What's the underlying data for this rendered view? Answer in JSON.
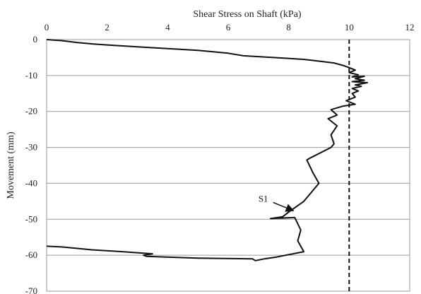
{
  "chart_data": {
    "type": "line",
    "title": "",
    "xlabel": "Shear Stress on Shaft (kPa)",
    "ylabel": "Movement (mm)",
    "xlim": [
      0,
      12
    ],
    "ylim": [
      -70,
      0
    ],
    "x_ticks": [
      0,
      2,
      4,
      6,
      8,
      10,
      12
    ],
    "y_ticks": [
      0,
      -10,
      -20,
      -30,
      -40,
      -50,
      -60,
      -70
    ],
    "x_axis_position": "top",
    "grid": "horizontal",
    "legend": "none",
    "series": [
      {
        "color": "#111111",
        "points": [
          [
            0.0,
            0.0
          ],
          [
            0.5,
            -0.3
          ],
          [
            1.0,
            -0.8
          ],
          [
            1.5,
            -1.2
          ],
          [
            2.0,
            -1.5
          ],
          [
            3.0,
            -2.0
          ],
          [
            4.0,
            -2.5
          ],
          [
            5.0,
            -3.0
          ],
          [
            6.0,
            -3.8
          ],
          [
            6.5,
            -4.5
          ],
          [
            7.5,
            -5.0
          ],
          [
            8.5,
            -5.5
          ],
          [
            9.0,
            -6.0
          ],
          [
            9.5,
            -6.5
          ],
          [
            9.8,
            -7.2
          ],
          [
            10.0,
            -7.8
          ],
          [
            10.2,
            -8.5
          ],
          [
            10.0,
            -9.2
          ],
          [
            10.3,
            -9.8
          ],
          [
            10.1,
            -10.4
          ],
          [
            10.5,
            -10.2
          ],
          [
            10.2,
            -10.9
          ],
          [
            10.5,
            -11.3
          ],
          [
            10.1,
            -11.7
          ],
          [
            10.6,
            -12.0
          ],
          [
            10.2,
            -12.6
          ],
          [
            10.4,
            -13.0
          ],
          [
            10.1,
            -13.6
          ],
          [
            10.3,
            -14.3
          ],
          [
            10.1,
            -15.0
          ],
          [
            10.2,
            -16.0
          ],
          [
            9.9,
            -17.0
          ],
          [
            10.2,
            -18.0
          ],
          [
            9.8,
            -18.5
          ],
          [
            9.4,
            -19.5
          ],
          [
            9.6,
            -21.0
          ],
          [
            9.3,
            -22.0
          ],
          [
            9.6,
            -24.0
          ],
          [
            9.4,
            -26.5
          ],
          [
            9.5,
            -29.0
          ],
          [
            9.4,
            -30.0
          ],
          [
            8.7,
            -33.0
          ],
          [
            8.6,
            -33.5
          ],
          [
            8.8,
            -37.0
          ],
          [
            9.0,
            -40.0
          ],
          [
            8.5,
            -45.0
          ],
          [
            8.0,
            -48.0
          ],
          [
            7.8,
            -49.3
          ],
          [
            7.4,
            -49.8
          ],
          [
            8.2,
            -49.5
          ],
          [
            8.4,
            -53.0
          ],
          [
            8.3,
            -56.0
          ],
          [
            8.5,
            -59.0
          ],
          [
            7.6,
            -60.5
          ],
          [
            7.2,
            -61.0
          ],
          [
            6.9,
            -61.5
          ],
          [
            6.8,
            -61.0
          ],
          [
            5.0,
            -60.8
          ],
          [
            4.3,
            -60.6
          ],
          [
            3.3,
            -60.3
          ],
          [
            3.2,
            -60.0
          ],
          [
            3.5,
            -59.6
          ],
          [
            2.5,
            -59.0
          ],
          [
            1.5,
            -58.5
          ],
          [
            0.5,
            -57.7
          ],
          [
            0.0,
            -57.5
          ]
        ]
      }
    ],
    "reference_line": {
      "x": 10.0,
      "style": "dashed",
      "color": "#111111"
    },
    "annotations": [
      {
        "text": "S1",
        "x": 7.3,
        "y": -45.5,
        "arrow_to": [
          8.2,
          -48.0
        ]
      }
    ]
  }
}
